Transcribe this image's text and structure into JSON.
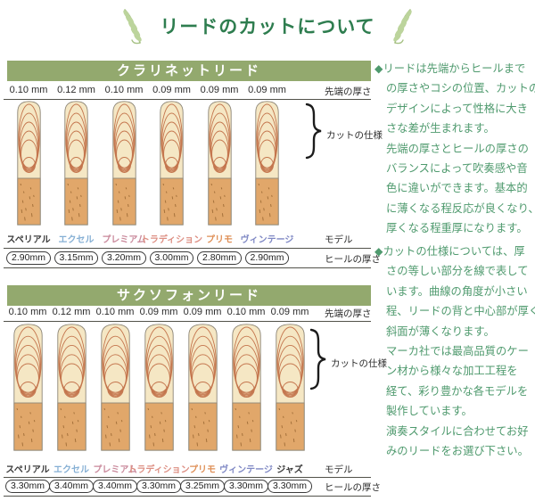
{
  "page": {
    "title": "リードのカットについて"
  },
  "colors": {
    "header_bar": "#93a96e",
    "title_green": "#2e7d4f",
    "note_green": "#4f9a6e",
    "reed_vamp": "#f5e7c4",
    "reed_butt": "#e1a76a",
    "cut_line": "#c4764e"
  },
  "sections": [
    {
      "id": "clarinet",
      "header": "クラリネットリード",
      "tip_label": "先端の厚さ",
      "model_label": "モデル",
      "heel_label": "ヒールの厚さ",
      "cut_label": "カットの仕様",
      "reeds": [
        {
          "tip": "0.10 mm",
          "model": "スペリアル",
          "color": "#3a3a3a",
          "heel": "2.90mm"
        },
        {
          "tip": "0.12 mm",
          "model": "エクセル",
          "color": "#85afd4",
          "heel": "3.15mm"
        },
        {
          "tip": "0.10 mm",
          "model": "プレミアム",
          "color": "#c9899b",
          "heel": "3.20mm"
        },
        {
          "tip": "0.09 mm",
          "model": "トラディション",
          "color": "#dd8f83",
          "heel": "3.00mm"
        },
        {
          "tip": "0.09 mm",
          "model": "プリモ",
          "color": "#df8f56",
          "heel": "2.80mm"
        },
        {
          "tip": "0.09 mm",
          "model": "ヴィンテージ",
          "color": "#7f88c4",
          "heel": "2.90mm"
        }
      ]
    },
    {
      "id": "saxophone",
      "header": "サクソフォンリード",
      "tip_label": "先端の厚さ",
      "model_label": "モデル",
      "heel_label": "ヒールの厚さ",
      "cut_label": "カットの仕様",
      "reeds": [
        {
          "tip": "0.10 mm",
          "model": "スペリアル",
          "color": "#3a3a3a",
          "heel": "3.30mm"
        },
        {
          "tip": "0.12 mm",
          "model": "エクセル",
          "color": "#85afd4",
          "heel": "3.40mm"
        },
        {
          "tip": "0.10 mm",
          "model": "プレミアム",
          "color": "#c9899b",
          "heel": "3.40mm"
        },
        {
          "tip": "0.09 mm",
          "model": "トラディション",
          "color": "#dd8f83",
          "heel": "3.30mm"
        },
        {
          "tip": "0.09 mm",
          "model": "プリモ",
          "color": "#df8f56",
          "heel": "3.25mm"
        },
        {
          "tip": "0.10 mm",
          "model": "ヴィンテージ",
          "color": "#7f88c4",
          "heel": "3.30mm"
        },
        {
          "tip": "0.09 mm",
          "model": "ジャズ",
          "color": "#3a3a3a",
          "heel": "3.30mm"
        }
      ]
    }
  ],
  "notes": [
    {
      "lines": [
        "◆リードは先端からヒールまで",
        "の厚さやコシの位置、カットの",
        "デザインによって性格に大き",
        "さな差が生まれます。",
        "先端の厚さとヒールの厚さの",
        "バランスによって吹奏感や音",
        "色に違いができます。基本的",
        "に薄くなる程反応が良くなり、",
        "厚くなる程重厚になります。"
      ]
    },
    {
      "lines": [
        "◆カットの仕様については、厚",
        "さの等しい部分を線で表して",
        "います。曲線の角度が小さい",
        "程、リードの背と中心部が厚く",
        "斜面が薄くなります。",
        "マーカ社では最高品質のケー",
        "ン材から様々な加工工程を",
        "経て、彩り豊かな各モデルを",
        "製作しています。",
        "演奏スタイルに合わせてお好",
        "みのリードをお選び下さい。"
      ]
    }
  ]
}
